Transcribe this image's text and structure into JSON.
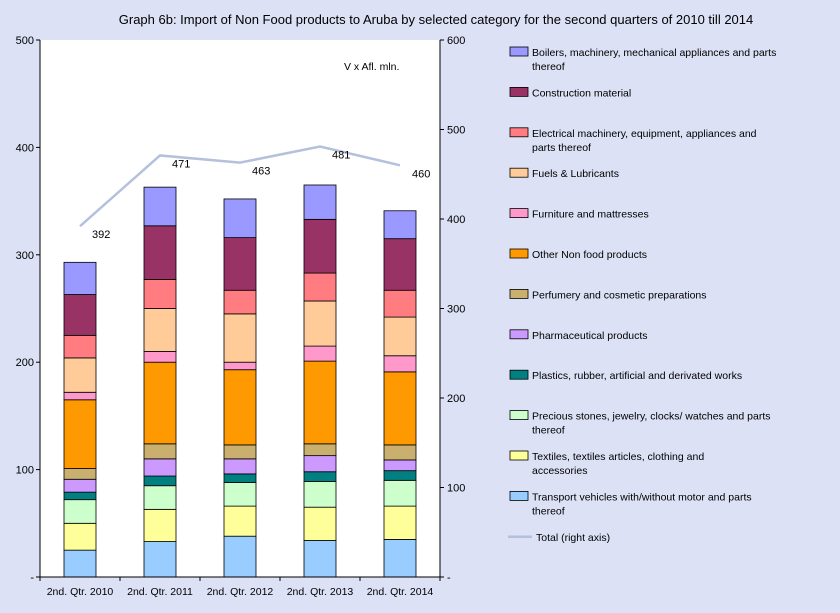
{
  "chart_data": {
    "type": "bar",
    "stacked": true,
    "title": "Graph 6b: Import of Non Food products to Aruba by selected category for the second quarters of 2010 till 2014",
    "unit_note": "V x Afl. mln.",
    "categories": [
      "2nd. Qtr. 2010",
      "2nd. Qtr. 2011",
      "2nd. Qtr. 2012",
      "2nd. Qtr. 2013",
      "2nd. Qtr. 2014"
    ],
    "left_axis": {
      "ylim": [
        0,
        500
      ],
      "ticks": [
        "-",
        "100",
        "200",
        "300",
        "400",
        "500"
      ],
      "tick_values": [
        0,
        100,
        200,
        300,
        400,
        500
      ]
    },
    "right_axis": {
      "ylim": [
        0,
        600
      ],
      "ticks": [
        "-",
        "100",
        "200",
        "300",
        "400",
        "500",
        "600"
      ],
      "tick_values": [
        0,
        100,
        200,
        300,
        400,
        500,
        600
      ]
    },
    "series": [
      {
        "name": "Transport vehicles with/without motor and parts thereof",
        "color": "#99ccff",
        "values": [
          25,
          33,
          38,
          34,
          35
        ]
      },
      {
        "name": "Textiles, textiles articles, clothing and accessories",
        "color": "#ffff99",
        "values": [
          25,
          30,
          28,
          31,
          31
        ]
      },
      {
        "name": "Precious stones, jewelry, clocks/ watches and parts thereof",
        "color": "#ccffcc",
        "values": [
          22,
          22,
          22,
          24,
          24
        ]
      },
      {
        "name": "Plastics, rubber, artificial and derivated works",
        "color": "#008080",
        "values": [
          7,
          9,
          8,
          9,
          9
        ]
      },
      {
        "name": "Pharmaceutical products",
        "color": "#cc99ff",
        "values": [
          12,
          16,
          14,
          15,
          10
        ]
      },
      {
        "name": "Perfumery and cosmetic preparations",
        "color": "#c9b06e",
        "values": [
          10,
          14,
          13,
          11,
          14
        ]
      },
      {
        "name": "Other Non food products",
        "color": "#ff9900",
        "values": [
          64,
          76,
          70,
          77,
          68
        ]
      },
      {
        "name": "Furniture and mattresses",
        "color": "#ff99cc",
        "values": [
          7,
          10,
          7,
          14,
          15
        ]
      },
      {
        "name": "Fuels & Lubricants",
        "color": "#ffcc99",
        "values": [
          32,
          40,
          45,
          42,
          36
        ]
      },
      {
        "name": "Electrical machinery, equipment, appliances  and parts thereof",
        "color": "#ff7c80",
        "values": [
          21,
          27,
          22,
          26,
          25
        ]
      },
      {
        "name": "Construction material",
        "color": "#993366",
        "values": [
          38,
          50,
          49,
          50,
          48
        ]
      },
      {
        "name": "Boilers, machinery, mechanical appliances and parts thereof",
        "color": "#9999ff",
        "values": [
          30,
          36,
          36,
          32,
          26
        ]
      }
    ],
    "line_series": {
      "name": "Total (right axis)",
      "color": "#b4c0dc",
      "axis": "right",
      "values": [
        392,
        471,
        463,
        481,
        460
      ],
      "labels": [
        "392",
        "471",
        "463",
        "481",
        "460"
      ]
    },
    "legend_order": [
      "Boilers, machinery, mechanical appliances and parts thereof",
      "Construction material",
      "Electrical machinery, equipment, appliances  and parts thereof",
      "Fuels & Lubricants",
      "Furniture and mattresses",
      "Other Non food products",
      "Perfumery and cosmetic preparations",
      "Pharmaceutical products",
      "Plastics, rubber, artificial and derivated works",
      "Precious stones, jewelry, clocks/ watches and parts thereof",
      "Textiles, textiles articles, clothing and accessories",
      "Transport vehicles with/without motor and parts thereof",
      "Total (right axis)"
    ],
    "legend_placement": "right",
    "grid": false
  }
}
